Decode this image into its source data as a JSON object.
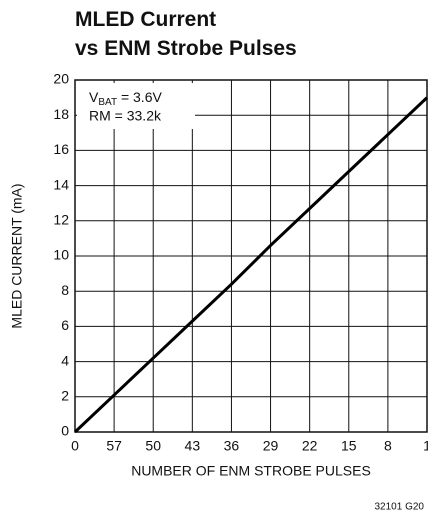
{
  "chart_data": {
    "type": "line",
    "title_lines": [
      "MLED Current",
      "vs ENM Strobe Pulses"
    ],
    "x_label": "NUMBER OF ENM STROBE PULSES",
    "y_label": "MLED CURRENT (mA)",
    "annotation": {
      "main": "V",
      "sub": "BAT",
      "rest": " = 3.6V",
      "line2": "RM = 33.2k"
    },
    "footer": "32101 G20",
    "categories": [
      "0",
      "57",
      "50",
      "43",
      "36",
      "29",
      "22",
      "15",
      "8",
      "1"
    ],
    "series": [
      {
        "name": "MLED current",
        "color": "#000000",
        "values": [
          0,
          2.1,
          4.2,
          6.3,
          8.4,
          10.6,
          12.7,
          14.8,
          16.9,
          19.0
        ]
      }
    ],
    "ylim": [
      0,
      20
    ],
    "yticks": [
      0,
      2,
      4,
      6,
      8,
      10,
      12,
      14,
      16,
      18,
      20
    ],
    "grid": true
  }
}
